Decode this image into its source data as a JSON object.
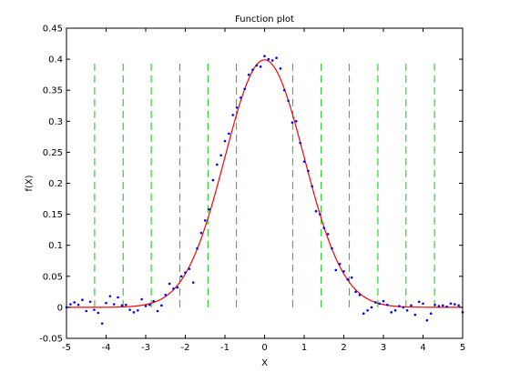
{
  "chart_data": {
    "type": "line",
    "title": "Function plot",
    "xlabel": "X",
    "ylabel": "f(X)",
    "xlim": [
      -5,
      5
    ],
    "ylim": [
      -0.05,
      0.45
    ],
    "xticks": [
      "-5",
      "-4",
      "-3",
      "-2",
      "-1",
      "0",
      "1",
      "2",
      "3",
      "4",
      "5"
    ],
    "yticks": [
      "-0.05",
      "0",
      "0.05",
      "0.1",
      "0.15",
      "0.2",
      "0.25",
      "0.3",
      "0.35",
      "0.4",
      "0.45"
    ],
    "grid": false,
    "vertical_lines": {
      "color": "#00cc00",
      "style": "dashed",
      "y_range": [
        0,
        0.4
      ],
      "x": [
        -4.29,
        -3.57,
        -2.86,
        -2.14,
        -1.43,
        -0.71,
        0.71,
        1.43,
        2.14,
        2.86,
        3.57,
        4.29
      ]
    },
    "series": [
      {
        "kind": "curve",
        "color": "#ff0000",
        "function": "normal_pdf_mean0_sd1",
        "x_range": [
          -5,
          5
        ]
      },
      {
        "kind": "scatter",
        "color": "#0000ff",
        "marker": "dot",
        "points": [
          [
            -5.0,
            0.0
          ],
          [
            -4.9,
            0.005
          ],
          [
            -4.8,
            0.008
          ],
          [
            -4.7,
            0.004
          ],
          [
            -4.6,
            0.012
          ],
          [
            -4.5,
            -0.006
          ],
          [
            -4.4,
            0.009
          ],
          [
            -4.3,
            -0.004
          ],
          [
            -4.2,
            -0.009
          ],
          [
            -4.1,
            -0.026
          ],
          [
            -4.0,
            0.007
          ],
          [
            -3.9,
            0.018
          ],
          [
            -3.8,
            0.005
          ],
          [
            -3.7,
            0.016
          ],
          [
            -3.6,
            0.003
          ],
          [
            -3.5,
            0.004
          ],
          [
            -3.4,
            -0.004
          ],
          [
            -3.3,
            -0.008
          ],
          [
            -3.2,
            -0.005
          ],
          [
            -3.1,
            0.013
          ],
          [
            -3.0,
            0.002
          ],
          [
            -2.9,
            0.004
          ],
          [
            -2.8,
            0.01
          ],
          [
            -2.7,
            -0.006
          ],
          [
            -2.6,
            0.003
          ],
          [
            -2.5,
            0.02
          ],
          [
            -2.4,
            0.038
          ],
          [
            -2.3,
            0.03
          ],
          [
            -2.2,
            0.032
          ],
          [
            -2.1,
            0.05
          ],
          [
            -2.0,
            0.056
          ],
          [
            -1.9,
            0.062
          ],
          [
            -1.8,
            0.04
          ],
          [
            -1.7,
            0.095
          ],
          [
            -1.6,
            0.12
          ],
          [
            -1.5,
            0.14
          ],
          [
            -1.4,
            0.158
          ],
          [
            -1.3,
            0.205
          ],
          [
            -1.2,
            0.23
          ],
          [
            -1.1,
            0.245
          ],
          [
            -1.0,
            0.268
          ],
          [
            -0.9,
            0.28
          ],
          [
            -0.8,
            0.31
          ],
          [
            -0.7,
            0.322
          ],
          [
            -0.6,
            0.338
          ],
          [
            -0.5,
            0.352
          ],
          [
            -0.4,
            0.375
          ],
          [
            -0.3,
            0.383
          ],
          [
            -0.2,
            0.39
          ],
          [
            -0.1,
            0.388
          ],
          [
            0.0,
            0.405
          ],
          [
            0.1,
            0.4
          ],
          [
            0.2,
            0.398
          ],
          [
            0.3,
            0.402
          ],
          [
            0.4,
            0.385
          ],
          [
            0.5,
            0.35
          ],
          [
            0.6,
            0.333
          ],
          [
            0.7,
            0.298
          ],
          [
            0.8,
            0.3
          ],
          [
            0.9,
            0.265
          ],
          [
            1.0,
            0.235
          ],
          [
            1.1,
            0.22
          ],
          [
            1.2,
            0.195
          ],
          [
            1.3,
            0.155
          ],
          [
            1.4,
            0.15
          ],
          [
            1.5,
            0.128
          ],
          [
            1.6,
            0.118
          ],
          [
            1.7,
            0.095
          ],
          [
            1.8,
            0.06
          ],
          [
            1.9,
            0.07
          ],
          [
            2.0,
            0.058
          ],
          [
            2.1,
            0.045
          ],
          [
            2.2,
            0.048
          ],
          [
            2.3,
            0.025
          ],
          [
            2.4,
            0.02
          ],
          [
            2.5,
            -0.01
          ],
          [
            2.6,
            -0.005
          ],
          [
            2.7,
            0.0
          ],
          [
            2.8,
            0.008
          ],
          [
            2.9,
            0.006
          ],
          [
            3.0,
            0.01
          ],
          [
            3.1,
            0.004
          ],
          [
            3.2,
            -0.008
          ],
          [
            3.3,
            -0.005
          ],
          [
            3.4,
            0.002
          ],
          [
            3.5,
            0.0
          ],
          [
            3.6,
            -0.005
          ],
          [
            3.7,
            0.003
          ],
          [
            3.8,
            -0.012
          ],
          [
            3.9,
            0.009
          ],
          [
            4.0,
            0.006
          ],
          [
            4.1,
            -0.021
          ],
          [
            4.2,
            -0.01
          ],
          [
            4.3,
            0.004
          ],
          [
            4.4,
            0.002
          ],
          [
            4.5,
            0.003
          ],
          [
            4.6,
            0.001
          ],
          [
            4.7,
            0.006
          ],
          [
            4.8,
            0.005
          ],
          [
            4.9,
            0.003
          ],
          [
            5.0,
            -0.008
          ]
        ]
      }
    ]
  }
}
